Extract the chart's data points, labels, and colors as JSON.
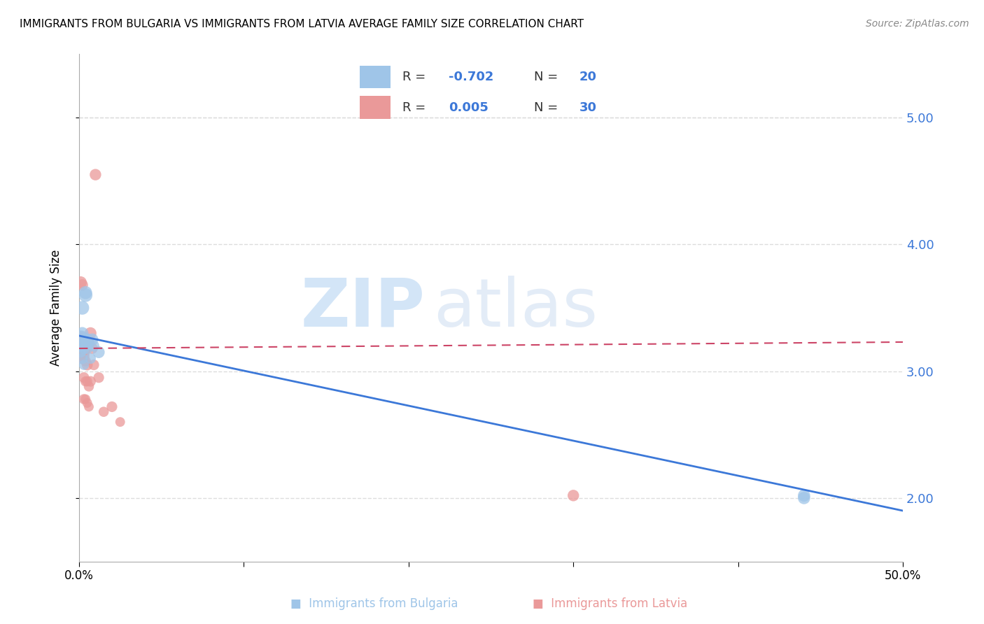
{
  "title": "IMMIGRANTS FROM BULGARIA VS IMMIGRANTS FROM LATVIA AVERAGE FAMILY SIZE CORRELATION CHART",
  "source": "Source: ZipAtlas.com",
  "ylabel": "Average Family Size",
  "yticks": [
    2.0,
    3.0,
    4.0,
    5.0
  ],
  "xlim": [
    0.0,
    0.5
  ],
  "ylim": [
    1.5,
    5.5
  ],
  "watermark_zip": "ZIP",
  "watermark_atlas": "atlas",
  "legend1_r": "-0.702",
  "legend1_n": "20",
  "legend2_r": "0.005",
  "legend2_n": "30",
  "blue_color": "#9fc5e8",
  "pink_color": "#ea9999",
  "trendline_blue": "#3c78d8",
  "trendline_pink": "#cc4466",
  "grid_color": "#dddddd",
  "blue_scatter_x": [
    0.001,
    0.001,
    0.001,
    0.002,
    0.002,
    0.002,
    0.003,
    0.003,
    0.003,
    0.004,
    0.004,
    0.005,
    0.005,
    0.006,
    0.007,
    0.008,
    0.009,
    0.012,
    0.44,
    0.44
  ],
  "blue_scatter_y": [
    3.25,
    3.2,
    3.15,
    3.5,
    3.3,
    3.1,
    3.22,
    3.18,
    3.05,
    3.6,
    3.62,
    3.25,
    3.18,
    3.22,
    3.1,
    3.25,
    3.2,
    3.15,
    2.02,
    2.0
  ],
  "blue_scatter_s": [
    350,
    180,
    120,
    200,
    160,
    130,
    150,
    140,
    110,
    200,
    180,
    160,
    140,
    130,
    120,
    160,
    130,
    150,
    160,
    160
  ],
  "pink_scatter_x": [
    0.001,
    0.001,
    0.001,
    0.002,
    0.002,
    0.002,
    0.003,
    0.003,
    0.003,
    0.003,
    0.004,
    0.004,
    0.004,
    0.004,
    0.005,
    0.005,
    0.005,
    0.006,
    0.006,
    0.006,
    0.007,
    0.007,
    0.008,
    0.009,
    0.01,
    0.012,
    0.015,
    0.02,
    0.025,
    0.3
  ],
  "pink_scatter_y": [
    3.25,
    3.22,
    3.7,
    3.68,
    3.2,
    3.1,
    3.15,
    3.12,
    2.95,
    2.78,
    3.18,
    3.08,
    2.92,
    2.78,
    3.05,
    2.92,
    2.75,
    3.22,
    2.88,
    2.72,
    3.3,
    2.92,
    3.18,
    3.05,
    4.55,
    2.95,
    2.68,
    2.72,
    2.6,
    2.02
  ],
  "pink_scatter_s": [
    300,
    180,
    160,
    140,
    160,
    130,
    150,
    130,
    120,
    110,
    140,
    120,
    110,
    100,
    130,
    110,
    100,
    140,
    110,
    100,
    150,
    120,
    130,
    120,
    140,
    120,
    110,
    120,
    100,
    140
  ],
  "blue_trend_x": [
    0.0,
    0.5
  ],
  "blue_trend_y": [
    3.28,
    1.9
  ],
  "pink_trend_x": [
    0.0,
    0.5
  ],
  "pink_trend_y": [
    3.18,
    3.23
  ]
}
